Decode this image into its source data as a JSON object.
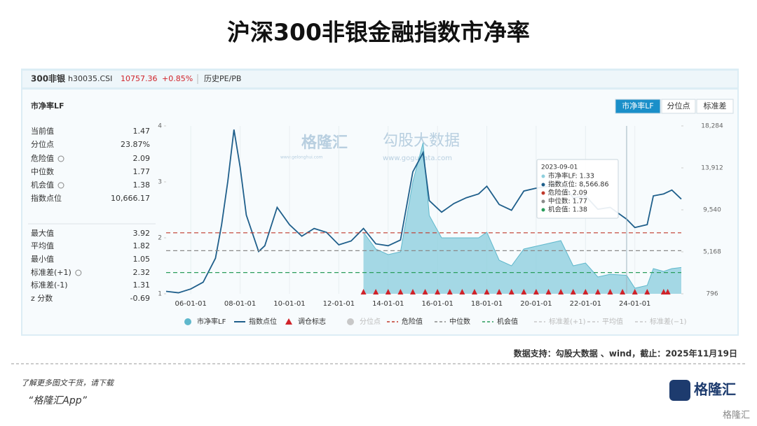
{
  "title": "沪深300非银金融指数市净率",
  "header": {
    "name": "300非银",
    "code": "h30035.CSI",
    "price": "10757.36",
    "change": "+0.85%",
    "link": "历史PE/PB"
  },
  "panel_title": "市净率LF",
  "tabs": [
    {
      "label": "市净率LF",
      "active": true
    },
    {
      "label": "分位点",
      "active": false
    },
    {
      "label": "标准差",
      "active": false
    }
  ],
  "stats": [
    [
      {
        "label": "当前值",
        "value": "1.47",
        "icon": false
      },
      {
        "label": "分位点",
        "value": "23.87%",
        "icon": false
      },
      {
        "label": "危险值",
        "value": "2.09",
        "icon": true
      },
      {
        "label": "中位数",
        "value": "1.77",
        "icon": false
      },
      {
        "label": "机会值",
        "value": "1.38",
        "icon": true
      },
      {
        "label": "指数点位",
        "value": "10,666.17",
        "icon": false
      }
    ],
    [
      {
        "label": "最大值",
        "value": "3.92",
        "icon": false
      },
      {
        "label": "平均值",
        "value": "1.82",
        "icon": false
      },
      {
        "label": "最小值",
        "value": "1.05",
        "icon": false
      },
      {
        "label": "标准差(+1)",
        "value": "2.32",
        "icon": true
      },
      {
        "label": "标准差(-1)",
        "value": "1.31",
        "icon": false
      },
      {
        "label": "z 分数",
        "value": "-0.69",
        "icon": false
      }
    ]
  ],
  "watermark": {
    "brand": "格隆汇",
    "brand_url": "www.gelonghui.com",
    "data_brand": "勾股大数据",
    "data_url": "www.gogudata.com"
  },
  "chart_data": {
    "type": "line",
    "x": [
      "05-01-01",
      "05-07-01",
      "06-01-01",
      "06-07-01",
      "07-01-01",
      "07-04-01",
      "07-07-01",
      "07-10-01",
      "08-01-01",
      "08-04-01",
      "08-10-01",
      "09-01-01",
      "09-07-01",
      "10-01-01",
      "10-07-01",
      "11-01-01",
      "11-07-01",
      "12-01-01",
      "12-07-01",
      "13-01-01",
      "13-07-01",
      "14-01-01",
      "14-07-01",
      "15-01-01",
      "15-06-01",
      "15-09-01",
      "16-03-01",
      "16-09-01",
      "17-03-01",
      "17-09-01",
      "18-01-01",
      "18-07-01",
      "19-01-01",
      "19-07-01",
      "20-01-01",
      "20-07-01",
      "21-01-01",
      "21-07-01",
      "22-01-01",
      "22-07-01",
      "23-01-01",
      "23-09-01",
      "24-01-01",
      "24-07-01",
      "24-10-01",
      "25-03-01",
      "25-07-01",
      "25-11-19"
    ],
    "series": [
      {
        "name": "市净率LF",
        "color": "#5fb8cc",
        "fill": "#8fd0de",
        "style": "area",
        "values": [
          null,
          null,
          null,
          null,
          null,
          null,
          null,
          null,
          null,
          null,
          null,
          null,
          null,
          null,
          null,
          null,
          null,
          null,
          null,
          2.1,
          1.8,
          1.7,
          1.75,
          3.0,
          3.7,
          2.4,
          2.0,
          2.0,
          2.0,
          2.0,
          2.1,
          1.6,
          1.5,
          1.8,
          1.85,
          1.9,
          1.95,
          1.5,
          1.55,
          1.3,
          1.35,
          1.33,
          1.1,
          1.15,
          1.45,
          1.4,
          1.45,
          1.47
        ]
      },
      {
        "name": "指数点位",
        "color": "#1f5f8b",
        "style": "line",
        "axis": "y2",
        "values": [
          1050,
          900,
          1300,
          2000,
          4500,
          8000,
          12500,
          17900,
          14000,
          9000,
          5200,
          5800,
          9800,
          8000,
          6800,
          7600,
          7200,
          5900,
          6300,
          7600,
          6000,
          5800,
          6400,
          13500,
          15500,
          10500,
          9300,
          10200,
          10800,
          11200,
          12000,
          10100,
          9500,
          11500,
          11800,
          12000,
          12500,
          10800,
          11000,
          9600,
          9800,
          8566.86,
          7700,
          8000,
          11000,
          11200,
          11600,
          10666.17
        ]
      }
    ],
    "markers": {
      "name": "调仓标志",
      "color": "#d0232a",
      "x": [
        "13-01-01",
        "13-07-01",
        "14-01-01",
        "14-07-01",
        "15-01-01",
        "15-07-01",
        "16-01-01",
        "16-07-01",
        "17-01-01",
        "17-07-01",
        "18-01-01",
        "18-07-01",
        "19-01-01",
        "19-07-01",
        "20-01-01",
        "20-07-01",
        "21-01-01",
        "21-07-01",
        "22-01-01",
        "22-07-01",
        "23-01-01",
        "23-07-01",
        "24-01-01",
        "24-07-01",
        "25-03-01",
        "25-05-01"
      ]
    },
    "reference_lines": [
      {
        "name": "危险值",
        "value": 2.09,
        "color": "#c0392b"
      },
      {
        "name": "中位数",
        "value": 1.77,
        "color": "#8a8a8a"
      },
      {
        "name": "机会值",
        "value": 1.38,
        "color": "#2a9d5c"
      }
    ],
    "inactive_legend": [
      {
        "name": "分位点",
        "color": "#c8c8c8"
      },
      {
        "name": "标准差(+1)",
        "color": "#c8c8c8"
      },
      {
        "name": "平均值",
        "color": "#c8c8c8"
      },
      {
        "name": "标准差(−1)",
        "color": "#c8c8c8"
      }
    ],
    "xlim": [
      "05-01-01",
      "25-11-19"
    ],
    "xticks": [
      "06-01-01",
      "08-01-01",
      "10-01-01",
      "12-01-01",
      "14-01-01",
      "16-01-01",
      "18-01-01",
      "20-01-01",
      "22-01-01",
      "24-01-01"
    ],
    "ylim": [
      1,
      4
    ],
    "yticks": [
      1,
      2,
      3,
      4
    ],
    "y2lim": [
      796,
      18284
    ],
    "y2ticks": [
      796,
      {
        "value": 5168,
        "label": "5,168"
      },
      {
        "value": 9540,
        "label": "9,540"
      },
      {
        "value": 13912,
        "label": "13,912"
      },
      {
        "value": 18284,
        "label": "18,284"
      }
    ],
    "grid": true,
    "tooltip": {
      "date": "2023-09-01",
      "lines": [
        {
          "text": "市净率LF: 1.33",
          "color": "#8fd0de"
        },
        {
          "text": "指数点位: 8,566.86",
          "color": "#1f5f8b"
        },
        {
          "text": "危险值: 2.09",
          "color": "#c0392b"
        },
        {
          "text": "中位数: 1.77",
          "color": "#8a8a8a"
        },
        {
          "text": "机会值: 1.38",
          "color": "#2a9d5c"
        }
      ]
    }
  },
  "footer": {
    "source": "数据支持：勾股大数据 、wind，截止：2025年11月19日",
    "promo": "了解更多图文干货，请下载",
    "app": "“格隆汇App”",
    "logo": "格隆汇",
    "corner": "格隆汇"
  }
}
